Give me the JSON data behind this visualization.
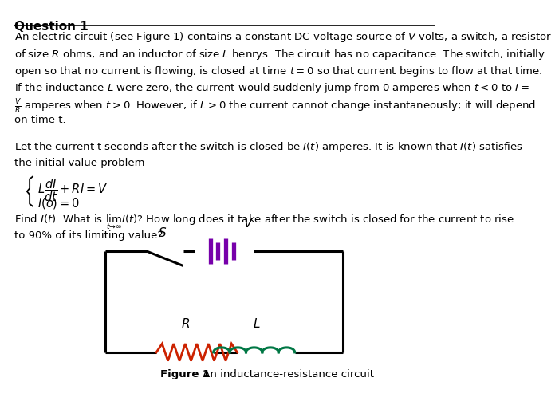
{
  "bg_color": "#ffffff",
  "title": "Question 1",
  "body_lines": [
    "An electric circuit (see Figure 1) contains a constant DC voltage source of $V$ volts, a switch, a resistor",
    "of size $R$ ohms, and an inductor of size $L$ henrys. The circuit has no capacitance. The switch, initially",
    "open so that no current is flowing, is closed at time $t = 0$ so that current begins to flow at that time.",
    "If the inductance $L$ were zero, the current would suddenly jump from 0 amperes when $t < 0$ to $I =$",
    "$\\frac{V}{R}$ amperes when $t > 0$. However, if $L > 0$ the current cannot change instantaneously; it will depend",
    "on time t.",
    "",
    "Let the current t seconds after the switch is closed be $I(t)$ amperes. It is known that $I(t)$ satisfies",
    "the initial-value problem"
  ],
  "equation_line1": "$L\\dfrac{dI}{dt} + RI = V$",
  "equation_line2": "$I(o) = 0$",
  "bottom_lines": [
    "Find $I(t)$. What is $\\lim_{t \\to \\infty} I(t)$? How long does it take after the switch is closed for the current to rise",
    "to 90% of its limiting value?"
  ],
  "figure_caption": "Figure 1",
  "figure_caption2": " An inductance-resistance circuit",
  "circuit": {
    "wire_color": "#000000",
    "resistor_color": "#cc2200",
    "inductor_color": "#007744",
    "capacitor_color": "#7700aa",
    "switch_label": "S",
    "voltage_label": "V",
    "resistor_label": "R",
    "inductor_label": "L"
  }
}
